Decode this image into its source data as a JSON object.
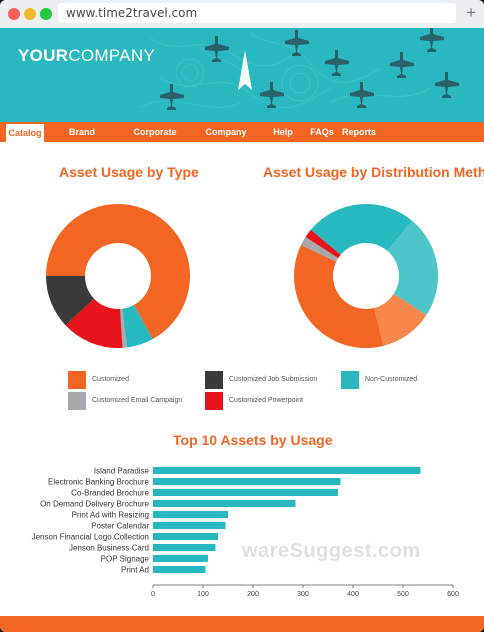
{
  "browser": {
    "url": "www.time2travel.com",
    "plus_label": "+"
  },
  "brand": {
    "logo_bold": "YOUR",
    "logo_light": "COMPANY"
  },
  "nav": {
    "items": [
      {
        "label": "Catalog",
        "active": true
      },
      {
        "label": "Brand Guidelines"
      },
      {
        "label": "Corporate Sponsor"
      },
      {
        "label": "Company News"
      },
      {
        "label": "Help Desk"
      },
      {
        "label": "FAQs"
      },
      {
        "label": "Reports"
      }
    ]
  },
  "headings": {
    "type_chart": "Asset Usage by Type",
    "dist_chart_prefix": "Asset Usage by ",
    "dist_chart_suffix": "Distribution Method",
    "bar_chart": "Top 10 Assets by Usage"
  },
  "colors": {
    "orange": "#f26522",
    "teal": "#28b8c0",
    "dark": "#3a3a3a",
    "gray": "#a7a9ac",
    "red": "#e8141c",
    "light_teal": "#4ec5c9",
    "light_orange": "#f7874a"
  },
  "legend": [
    {
      "label": "Customized",
      "color": "#f26522"
    },
    {
      "label": "Customized Job Submission",
      "color": "#3a3a3a"
    },
    {
      "label": "Non-Customized",
      "color": "#28b8c0"
    },
    {
      "label": "Customized Email Campaign",
      "color": "#a7a9ac"
    },
    {
      "label": "Customized Powerpoint",
      "color": "#e8141c"
    }
  ],
  "watermark": "wareSuggest.com",
  "chart_data": [
    {
      "type": "pie",
      "title": "Asset Usage by Type",
      "slices": [
        {
          "label": "Customized",
          "value": 67,
          "color": "#f26522"
        },
        {
          "label": "Non-Customized",
          "value": 6,
          "color": "#28b8c0"
        },
        {
          "label": "Customized Email Campaign",
          "value": 1,
          "color": "#a7a9ac"
        },
        {
          "label": "Customized Powerpoint",
          "value": 14,
          "color": "#e8141c"
        },
        {
          "label": "Customized Job Submission",
          "value": 12,
          "color": "#3a3a3a"
        }
      ]
    },
    {
      "type": "pie",
      "title": "Asset Usage by Distribution Method",
      "slices": [
        {
          "label": "Light Teal",
          "value": 23,
          "color": "#4ec5c9"
        },
        {
          "label": "Light Orange",
          "value": 12,
          "color": "#f7874a"
        },
        {
          "label": "Orange",
          "value": 36,
          "color": "#f26522"
        },
        {
          "label": "Gray",
          "value": 2,
          "color": "#a7a9ac"
        },
        {
          "label": "Red",
          "value": 2,
          "color": "#e8141c"
        },
        {
          "label": "Teal",
          "value": 25,
          "color": "#28b8c0"
        }
      ]
    },
    {
      "type": "bar",
      "orientation": "horizontal",
      "title": "Top 10 Assets by Usage",
      "categories": [
        "Island Paradise",
        "Electronic Banking Brochure",
        "Co-Branded Brochure",
        "On Demand Delivery Brochure",
        "Print Ad with Resizing",
        "Poster Calendar",
        "Jenson Financial Logo Collection",
        "Jenson Business Card",
        "POP Signage",
        "Print Ad"
      ],
      "values": [
        535,
        375,
        370,
        285,
        150,
        145,
        130,
        125,
        110,
        105
      ],
      "xlim": [
        0,
        600
      ],
      "ticks": [
        0,
        100,
        200,
        300,
        400,
        500,
        600
      ],
      "color": "#28b8c0"
    }
  ]
}
